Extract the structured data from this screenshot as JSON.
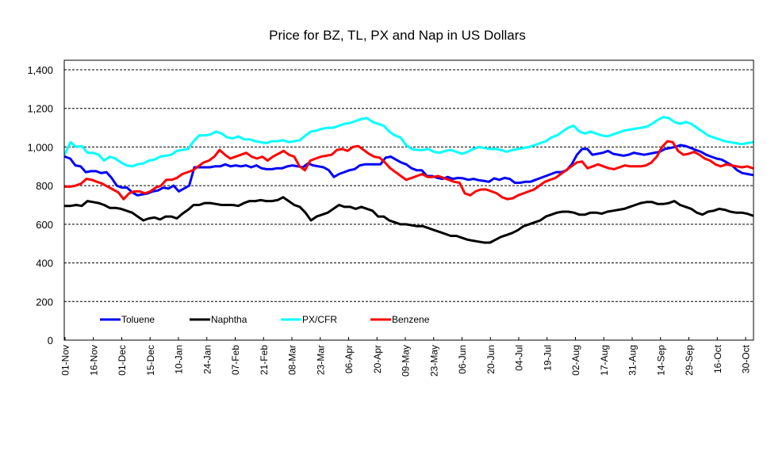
{
  "chart_data": {
    "type": "line",
    "title": "Price for BZ, TL, PX and Nap in US Dollars",
    "xlabel": "",
    "ylabel": "",
    "ylim": [
      0,
      1400
    ],
    "yticks": [
      "0",
      "200",
      "400",
      "600",
      "800",
      "1,000",
      "1,200",
      "1,400"
    ],
    "ytick_values": [
      0,
      200,
      400,
      600,
      800,
      1000,
      1200,
      1400
    ],
    "grid": "horizontal dashed",
    "legend_position": "bottom-left inside plot",
    "x_tick_labels": [
      "01-Nov",
      "16-Nov",
      "01-Dec",
      "15-Dec",
      "10-Jan",
      "24-Jan",
      "07-Feb",
      "21-Feb",
      "08-Mar",
      "23-Mar",
      "06-Apr",
      "20-Apr",
      "09-May",
      "23-May",
      "06-Jun",
      "20-Jun",
      "04-Jul",
      "19-Jul",
      "02-Aug",
      "17-Aug",
      "31-Aug",
      "14-Sep",
      "29-Sep",
      "16-Oct",
      "30-Oct"
    ],
    "series": [
      {
        "name": "Toluene",
        "color": "#0000ff",
        "values": [
          950,
          940,
          905,
          900,
          870,
          875,
          875,
          865,
          870,
          840,
          800,
          790,
          790,
          765,
          750,
          755,
          760,
          770,
          775,
          790,
          785,
          800,
          770,
          785,
          800,
          895,
          895,
          895,
          895,
          900,
          900,
          910,
          900,
          905,
          900,
          905,
          895,
          905,
          890,
          885,
          885,
          890,
          890,
          900,
          905,
          900,
          895,
          915,
          905,
          900,
          895,
          880,
          845,
          860,
          870,
          880,
          885,
          905,
          910,
          910,
          910,
          910,
          945,
          950,
          935,
          920,
          910,
          890,
          880,
          880,
          850,
          850,
          840,
          835,
          845,
          835,
          840,
          838,
          830,
          835,
          828,
          825,
          820,
          838,
          830,
          840,
          835,
          815,
          815,
          820,
          820,
          830,
          840,
          850,
          860,
          870,
          870,
          880,
          910,
          960,
          990,
          990,
          960,
          965,
          970,
          980,
          965,
          960,
          955,
          960,
          970,
          965,
          960,
          965,
          970,
          975,
          990,
          995,
          1000,
          1010,
          1005,
          995,
          985,
          975,
          960,
          950,
          940,
          935,
          920,
          905,
          880,
          865,
          860,
          855
        ]
      },
      {
        "name": "Naphtha",
        "color": "#000000",
        "values": [
          695,
          695,
          700,
          695,
          720,
          715,
          710,
          700,
          685,
          685,
          680,
          670,
          660,
          640,
          620,
          630,
          635,
          625,
          640,
          640,
          630,
          655,
          675,
          700,
          700,
          710,
          710,
          705,
          700,
          700,
          700,
          695,
          710,
          720,
          720,
          725,
          720,
          720,
          725,
          740,
          720,
          700,
          690,
          660,
          620,
          640,
          650,
          660,
          680,
          700,
          690,
          690,
          680,
          690,
          680,
          670,
          640,
          640,
          620,
          610,
          600,
          600,
          595,
          590,
          590,
          580,
          570,
          560,
          550,
          540,
          540,
          530,
          520,
          515,
          510,
          505,
          505,
          520,
          535,
          545,
          555,
          570,
          590,
          600,
          610,
          620,
          640,
          650,
          660,
          665,
          665,
          660,
          650,
          650,
          660,
          660,
          655,
          665,
          670,
          675,
          680,
          690,
          700,
          710,
          715,
          715,
          705,
          705,
          710,
          720,
          700,
          690,
          680,
          660,
          650,
          665,
          670,
          680,
          675,
          665,
          660,
          660,
          655,
          645
        ]
      },
      {
        "name": "PX/CFR",
        "color": "#00ffff",
        "values": [
          965,
          1025,
          1000,
          1005,
          970,
          970,
          960,
          930,
          950,
          940,
          920,
          905,
          900,
          910,
          915,
          930,
          935,
          950,
          955,
          960,
          980,
          985,
          990,
          1030,
          1060,
          1060,
          1065,
          1080,
          1070,
          1050,
          1045,
          1055,
          1040,
          1040,
          1030,
          1025,
          1020,
          1030,
          1030,
          1035,
          1025,
          1030,
          1035,
          1060,
          1080,
          1085,
          1095,
          1100,
          1100,
          1110,
          1120,
          1125,
          1135,
          1145,
          1150,
          1130,
          1120,
          1110,
          1080,
          1060,
          1050,
          1010,
          990,
          985,
          985,
          990,
          975,
          970,
          980,
          985,
          975,
          965,
          975,
          990,
          1000,
          995,
          990,
          990,
          985,
          975,
          985,
          990,
          995,
          1000,
          1010,
          1020,
          1030,
          1050,
          1060,
          1080,
          1100,
          1110,
          1080,
          1070,
          1080,
          1070,
          1060,
          1055,
          1065,
          1075,
          1085,
          1090,
          1095,
          1100,
          1105,
          1120,
          1140,
          1155,
          1150,
          1130,
          1120,
          1130,
          1120,
          1100,
          1080,
          1060,
          1050,
          1040,
          1030,
          1025,
          1020,
          1015,
          1020,
          1025
        ]
      },
      {
        "name": "Benzene",
        "color": "#ff0000",
        "values": [
          795,
          795,
          800,
          810,
          835,
          830,
          820,
          810,
          795,
          780,
          765,
          730,
          760,
          770,
          770,
          760,
          770,
          790,
          800,
          830,
          830,
          840,
          860,
          870,
          880,
          900,
          920,
          930,
          950,
          985,
          960,
          940,
          950,
          960,
          970,
          950,
          940,
          950,
          930,
          950,
          965,
          980,
          960,
          950,
          900,
          880,
          930,
          940,
          950,
          955,
          960,
          985,
          990,
          980,
          1000,
          1005,
          985,
          965,
          950,
          945,
          920,
          890,
          870,
          850,
          830,
          840,
          850,
          860,
          845,
          845,
          850,
          840,
          830,
          820,
          815,
          760,
          750,
          770,
          780,
          780,
          770,
          760,
          740,
          730,
          735,
          750,
          760,
          770,
          780,
          800,
          820,
          830,
          840,
          860,
          880,
          900,
          920,
          925,
          890,
          900,
          910,
          900,
          890,
          885,
          895,
          905,
          900,
          900,
          900,
          905,
          920,
          950,
          1000,
          1030,
          1025,
          980,
          960,
          965,
          975,
          960,
          940,
          930,
          910,
          900,
          910,
          905,
          900,
          895,
          900,
          890
        ]
      }
    ]
  }
}
